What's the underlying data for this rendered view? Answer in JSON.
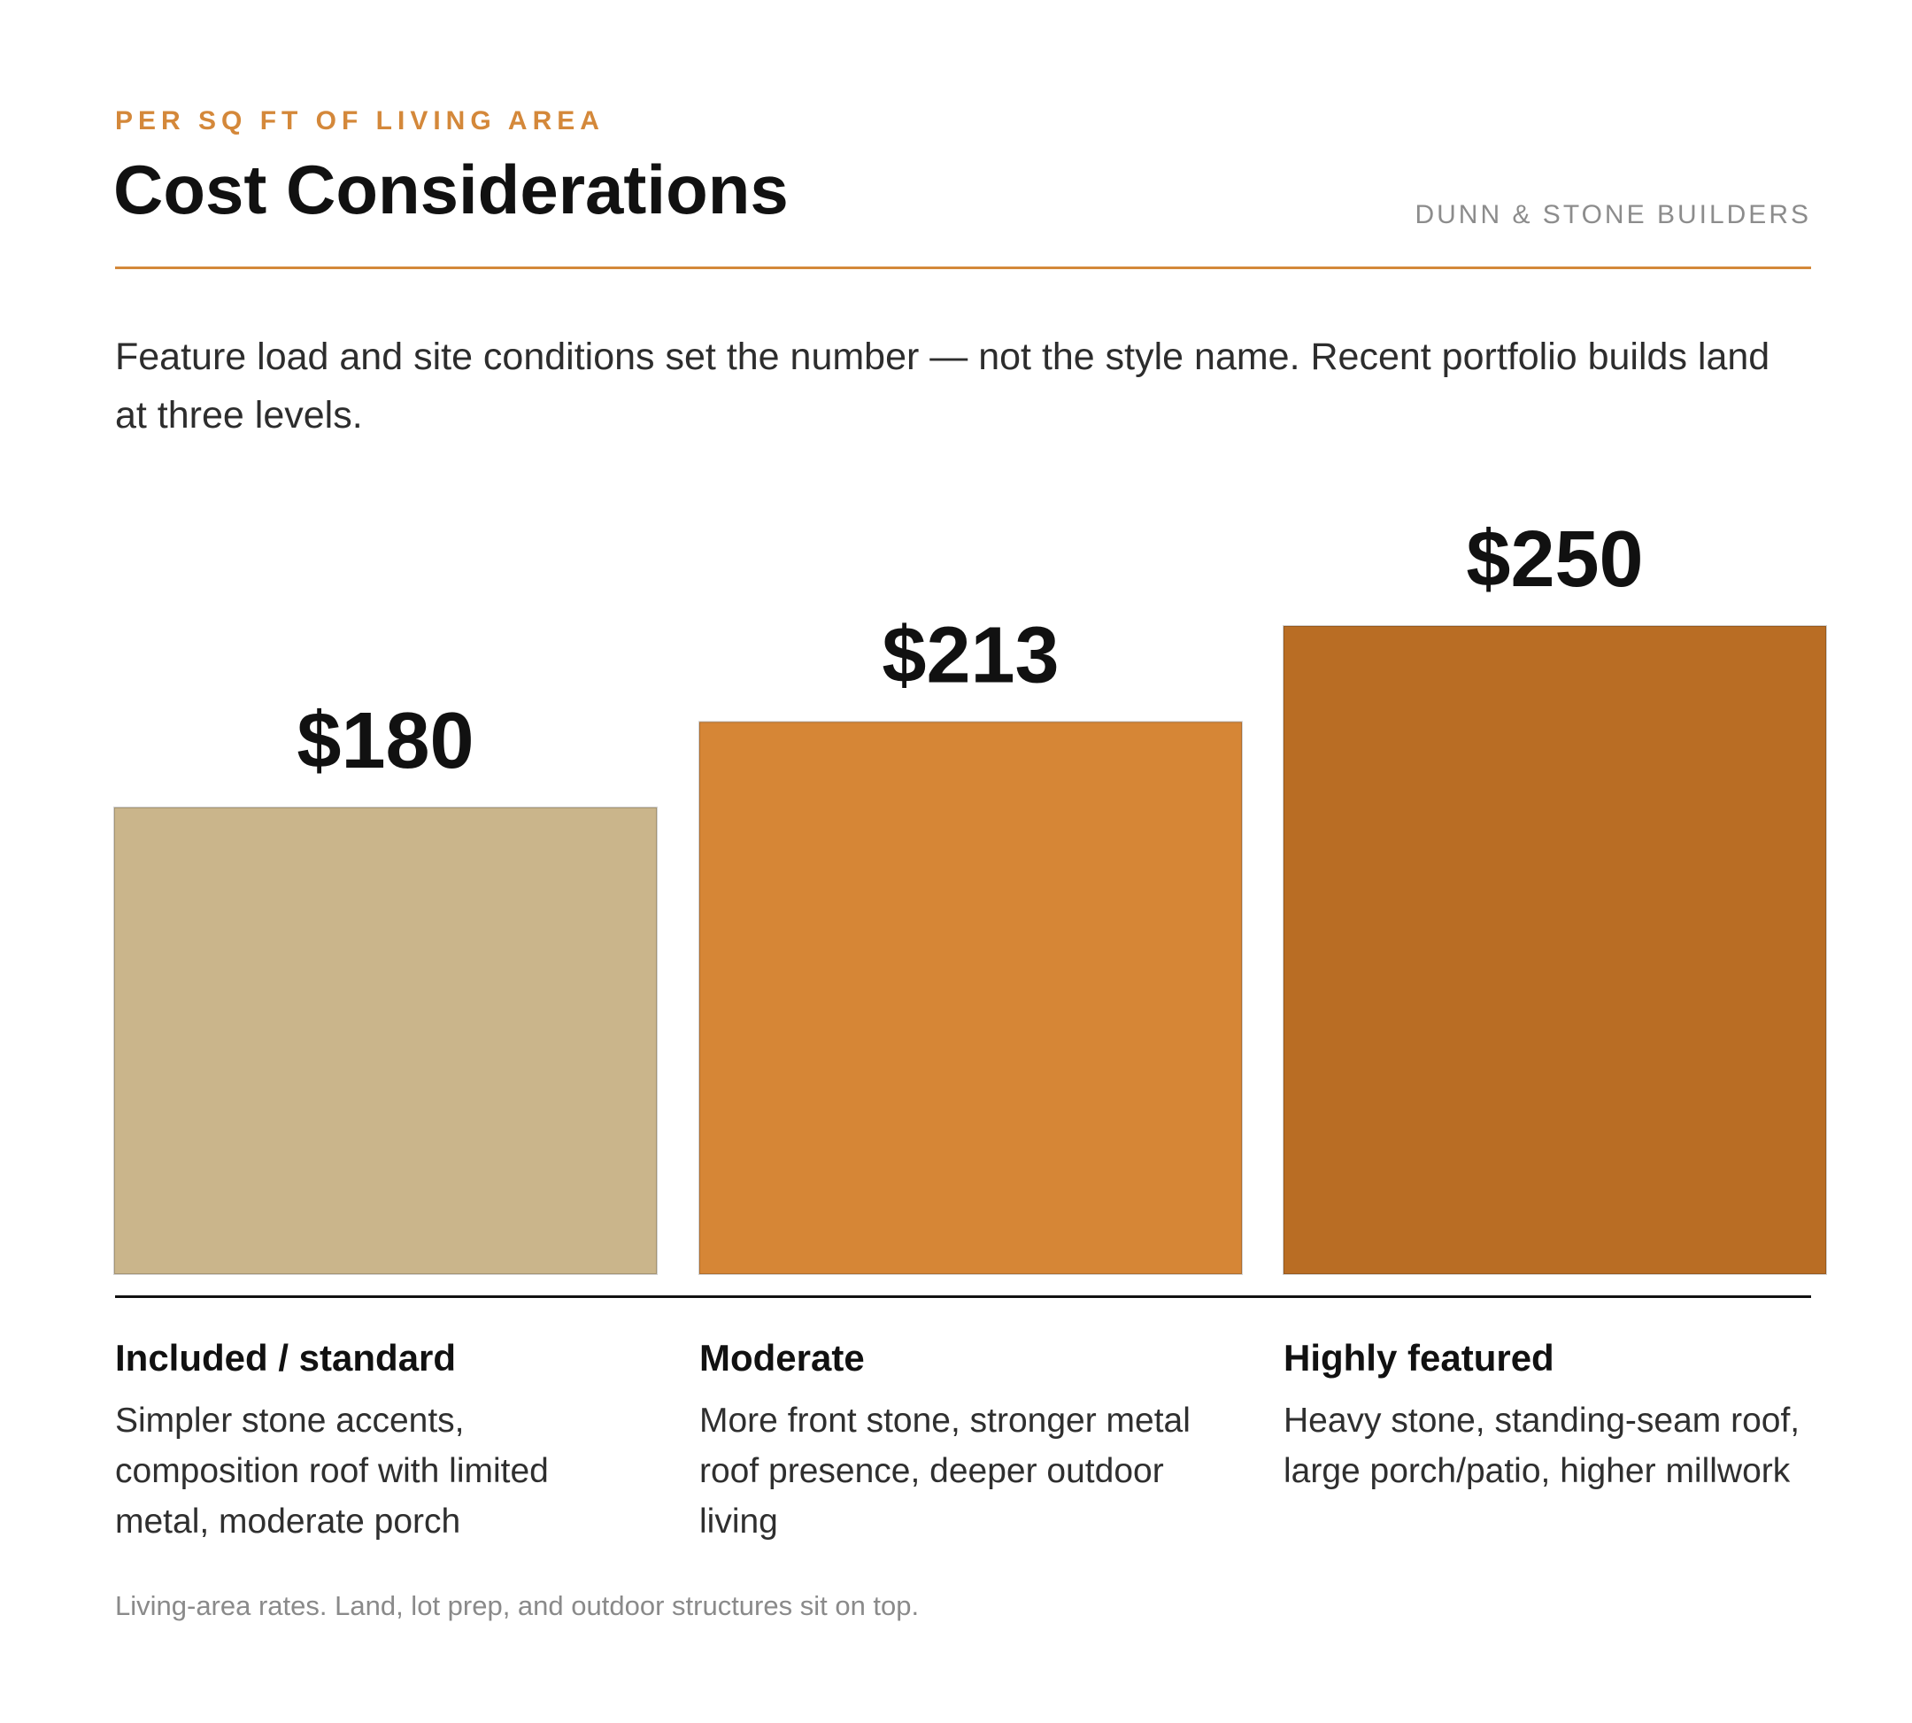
{
  "header": {
    "eyebrow": "PER SQ FT OF LIVING AREA",
    "title": "Cost Considerations",
    "brand": "DUNN & STONE BUILDERS"
  },
  "lede": "Feature load and site conditions set the number — not the style name. Recent portfolio builds land at three levels.",
  "chart_data": {
    "type": "bar",
    "categories": [
      "Included / standard",
      "Moderate",
      "Highly featured"
    ],
    "values": [
      180,
      213,
      250
    ],
    "value_labels": [
      "$180",
      "$213",
      "$250"
    ],
    "colors": [
      "#cab58b",
      "#d68636",
      "#b96d24"
    ],
    "title": "Cost Considerations",
    "ylabel": "",
    "xlabel": "",
    "ylim": [
      0,
      250
    ],
    "grid": false,
    "legend": "none"
  },
  "tiers": [
    {
      "label": "Included / standard",
      "description": "Simpler stone accents, composition roof with limited metal, moderate porch"
    },
    {
      "label": "Moderate",
      "description": "More front stone, stronger metal roof presence, deeper outdoor living"
    },
    {
      "label": "Highly featured",
      "description": "Heavy stone, standing-seam roof, large porch/patio, higher millwork"
    }
  ],
  "footnote": "Living-area rates. Land, lot prep, and outdoor structures sit on top."
}
